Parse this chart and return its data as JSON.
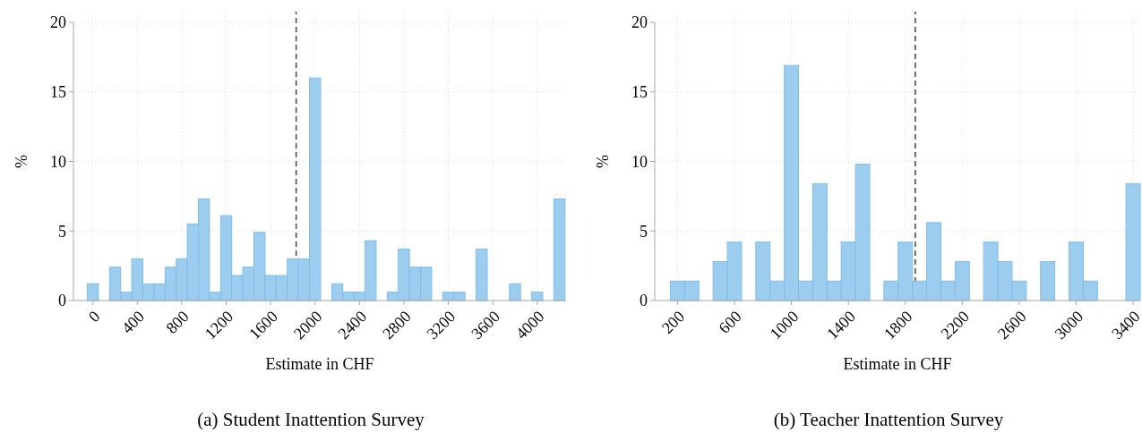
{
  "chart_data": [
    {
      "type": "histogram",
      "title": "(a) Student Inattention Survey",
      "xlabel": "Estimate in CHF",
      "ylabel": "%",
      "color": "#9dcdee",
      "bins": [
        -50,
        50,
        150,
        250,
        350,
        450,
        550,
        650,
        750,
        850,
        950,
        1050,
        1150,
        1250,
        1350,
        1450,
        1550,
        1650,
        1750,
        1850,
        1950,
        2050,
        2150,
        2250,
        2350,
        2450,
        2550,
        2650,
        2750,
        2850,
        2950,
        3050,
        3150,
        3250,
        3350,
        3450,
        3550,
        3650,
        3750,
        3850,
        3950,
        4050,
        4150,
        4250
      ],
      "values": [
        1.2,
        0,
        2.4,
        0.6,
        3.0,
        1.2,
        1.2,
        2.4,
        3.0,
        5.5,
        7.3,
        0.6,
        6.1,
        1.8,
        2.4,
        4.9,
        1.8,
        1.8,
        3.0,
        3.0,
        16,
        0,
        1.2,
        0.6,
        0.6,
        4.3,
        0,
        0.6,
        3.7,
        2.4,
        2.4,
        0,
        0.6,
        0.6,
        0,
        3.7,
        0,
        0,
        1.2,
        0,
        0.6,
        0,
        7.3
      ],
      "xlim": [
        -175,
        4260
      ],
      "xticks": [
        0,
        400,
        800,
        1200,
        1600,
        2000,
        2400,
        2800,
        3200,
        3600,
        4000
      ],
      "ylim": [
        0,
        20
      ],
      "yticks": [
        0,
        5,
        10,
        15,
        20
      ],
      "grid": true,
      "ref_lines": [
        {
          "axis": "x",
          "value": 1830,
          "color": "#444444",
          "line_style": "dashed"
        }
      ]
    },
    {
      "type": "histogram",
      "title": "(b) Teacher Inattention Survey",
      "xlabel": "Estimate in CHF",
      "ylabel": "%",
      "color": "#9dcdee",
      "bins": [
        150,
        250,
        350,
        450,
        550,
        650,
        750,
        850,
        950,
        1050,
        1150,
        1250,
        1350,
        1450,
        1550,
        1650,
        1750,
        1850,
        1950,
        2050,
        2150,
        2250,
        2350,
        2450,
        2550,
        2650,
        2750,
        2850,
        2950,
        3050,
        3150,
        3250,
        3350,
        3450
      ],
      "values": [
        1.4,
        1.4,
        0,
        2.8,
        4.2,
        0,
        4.2,
        1.4,
        16.9,
        1.4,
        8.4,
        1.4,
        4.2,
        9.8,
        0,
        1.4,
        4.2,
        1.4,
        5.6,
        1.4,
        2.8,
        0,
        4.2,
        2.8,
        1.4,
        0,
        2.8,
        0,
        4.2,
        1.4,
        0,
        0,
        8.4
      ],
      "xlim": [
        40,
        3450
      ],
      "xticks": [
        200,
        600,
        1000,
        1400,
        1800,
        2200,
        2600,
        3000,
        3400
      ],
      "ylim": [
        0,
        20
      ],
      "yticks": [
        0,
        5,
        10,
        15,
        20
      ],
      "grid": true,
      "ref_lines": [
        {
          "axis": "x",
          "value": 1870,
          "color": "#444444",
          "line_style": "dashed"
        }
      ]
    }
  ]
}
